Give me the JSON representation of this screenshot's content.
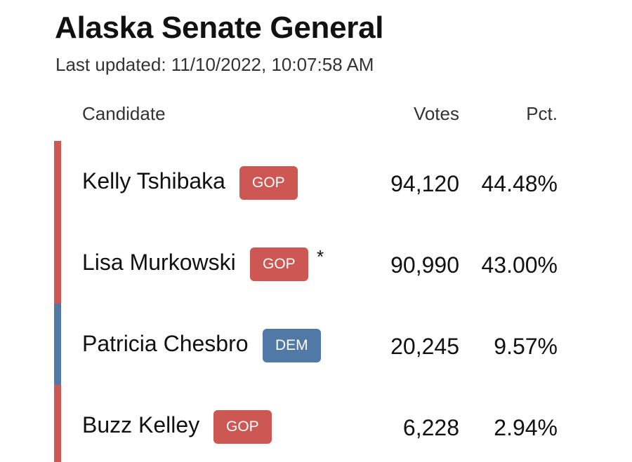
{
  "title": "Alaska Senate General",
  "last_updated": "Last updated: 11/10/2022, 10:07:58 AM",
  "columns": {
    "candidate": "Candidate",
    "votes": "Votes",
    "pct": "Pct."
  },
  "colors": {
    "GOP": "#cd5752",
    "DEM": "#5079a5"
  },
  "rows": [
    {
      "name": "Kelly Tshibaka",
      "party": "GOP",
      "incumbent": "",
      "votes": "94,120",
      "pct": "44.48%"
    },
    {
      "name": "Lisa Murkowski",
      "party": "GOP",
      "incumbent": "*",
      "votes": "90,990",
      "pct": "43.00%"
    },
    {
      "name": "Patricia Chesbro",
      "party": "DEM",
      "incumbent": "",
      "votes": "20,245",
      "pct": "9.57%"
    },
    {
      "name": "Buzz Kelley",
      "party": "GOP",
      "incumbent": "",
      "votes": "6,228",
      "pct": "2.94%"
    }
  ]
}
